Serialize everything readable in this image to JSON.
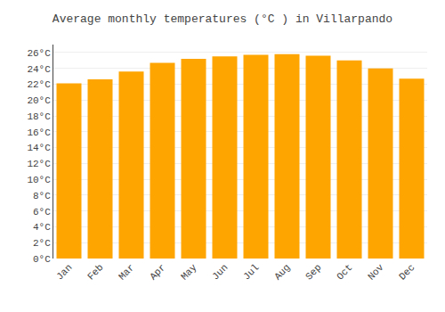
{
  "chart_data": {
    "type": "bar",
    "title": "Average monthly temperatures (°C ) in Villarpando",
    "categories": [
      "Jan",
      "Feb",
      "Mar",
      "Apr",
      "May",
      "Jun",
      "Jul",
      "Aug",
      "Sep",
      "Oct",
      "Nov",
      "Dec"
    ],
    "values": [
      22.1,
      22.6,
      23.6,
      24.7,
      25.2,
      25.5,
      25.7,
      25.8,
      25.6,
      25.0,
      24.0,
      22.7
    ],
    "color": "#FFA500",
    "ylim": [
      0,
      27
    ],
    "yticks": [
      {
        "value": 0,
        "label": "0°C"
      },
      {
        "value": 2,
        "label": "2°C"
      },
      {
        "value": 4,
        "label": "4°C"
      },
      {
        "value": 6,
        "label": "6°C"
      },
      {
        "value": 8,
        "label": "8°C"
      },
      {
        "value": 10,
        "label": "10°C"
      },
      {
        "value": 12,
        "label": "12°C"
      },
      {
        "value": 14,
        "label": "14°C"
      },
      {
        "value": 16,
        "label": "16°C"
      },
      {
        "value": 18,
        "label": "18°C"
      },
      {
        "value": 20,
        "label": "20°C"
      },
      {
        "value": 22,
        "label": "22°C"
      },
      {
        "value": 24,
        "label": "24°C"
      },
      {
        "value": 26,
        "label": "26°C"
      }
    ],
    "grid": true
  }
}
